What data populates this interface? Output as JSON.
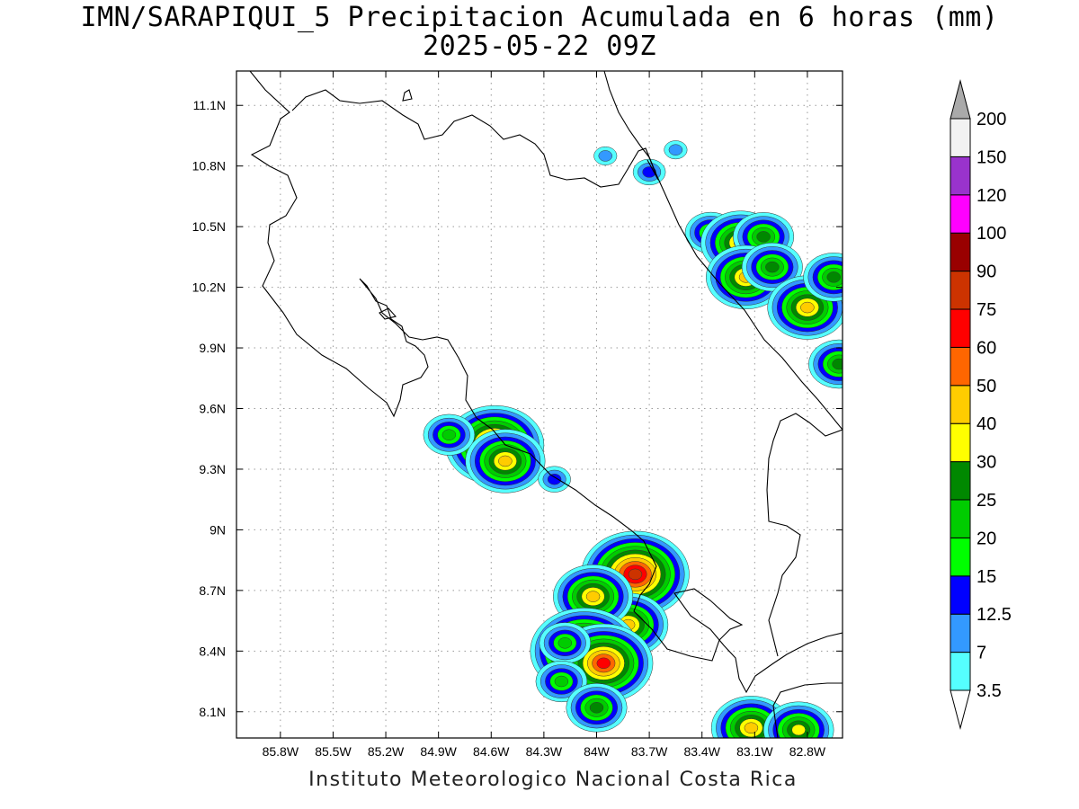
{
  "title_line1": "IMN/SARAPIQUI_5 Precipitacion Acumulada en 6 horas (mm)",
  "title_line2": "2025-05-22 09Z",
  "footer": "Instituto Meteorologico Nacional Costa Rica",
  "map": {
    "lon_range": [
      -86.05,
      -82.6
    ],
    "lat_range": [
      7.97,
      11.27
    ],
    "lon_ticks": [
      {
        "value": -85.8,
        "label": "85.8W"
      },
      {
        "value": -85.5,
        "label": "85.5W"
      },
      {
        "value": -85.2,
        "label": "85.2W"
      },
      {
        "value": -84.9,
        "label": "84.9W"
      },
      {
        "value": -84.6,
        "label": "84.6W"
      },
      {
        "value": -84.3,
        "label": "84.3W"
      },
      {
        "value": -84.0,
        "label": "84W"
      },
      {
        "value": -83.7,
        "label": "83.7W"
      },
      {
        "value": -83.4,
        "label": "83.4W"
      },
      {
        "value": -83.1,
        "label": "83.1W"
      },
      {
        "value": -82.8,
        "label": "82.8W"
      }
    ],
    "lat_ticks": [
      {
        "value": 8.1,
        "label": "8.1N"
      },
      {
        "value": 8.4,
        "label": "8.4N"
      },
      {
        "value": 8.7,
        "label": "8.7N"
      },
      {
        "value": 9.0,
        "label": "9N"
      },
      {
        "value": 9.3,
        "label": "9.3N"
      },
      {
        "value": 9.6,
        "label": "9.6N"
      },
      {
        "value": 9.9,
        "label": "9.9N"
      },
      {
        "value": 10.2,
        "label": "10.2N"
      },
      {
        "value": 10.5,
        "label": "10.5N"
      },
      {
        "value": 10.8,
        "label": "10.8N"
      },
      {
        "value": 11.1,
        "label": "11.1N"
      }
    ],
    "grid": true
  },
  "colorbar": {
    "levels": [
      "3.5",
      "7",
      "12.5",
      "15",
      "20",
      "25",
      "30",
      "40",
      "50",
      "60",
      "75",
      "90",
      "100",
      "120",
      "150",
      "200"
    ],
    "colors": [
      "#55ffff",
      "#3399ff",
      "#0000ff",
      "#00ff00",
      "#00cc00",
      "#008800",
      "#ffff00",
      "#ffcc00",
      "#ff6600",
      "#ff0000",
      "#cc3300",
      "#990000",
      "#ff00ff",
      "#9933cc",
      "#f2f2f2"
    ],
    "under_color": "#ffffff",
    "over_color": "#aaaaaa"
  },
  "precip_cells": [
    {
      "lon": -83.35,
      "lat": 10.47,
      "level": 4
    },
    {
      "lon": -83.18,
      "lat": 10.42,
      "level": 7
    },
    {
      "lon": -83.05,
      "lat": 10.45,
      "level": 5
    },
    {
      "lon": -83.15,
      "lat": 10.25,
      "level": 7
    },
    {
      "lon": -83.0,
      "lat": 10.3,
      "level": 5
    },
    {
      "lon": -82.8,
      "lat": 10.1,
      "level": 7
    },
    {
      "lon": -82.65,
      "lat": 10.25,
      "level": 5
    },
    {
      "lon": -82.62,
      "lat": 9.82,
      "level": 5
    },
    {
      "lon": -83.7,
      "lat": 10.77,
      "level": 2
    },
    {
      "lon": -83.55,
      "lat": 10.88,
      "level": 1
    },
    {
      "lon": -83.95,
      "lat": 10.85,
      "level": 1
    },
    {
      "lon": -84.58,
      "lat": 9.42,
      "level": 9
    },
    {
      "lon": -84.52,
      "lat": 9.34,
      "level": 7
    },
    {
      "lon": -84.84,
      "lat": 9.47,
      "level": 4
    },
    {
      "lon": -84.24,
      "lat": 9.25,
      "level": 2
    },
    {
      "lon": -83.78,
      "lat": 8.78,
      "level": 10
    },
    {
      "lon": -83.82,
      "lat": 8.53,
      "level": 7
    },
    {
      "lon": -84.02,
      "lat": 8.67,
      "level": 7
    },
    {
      "lon": -84.07,
      "lat": 8.4,
      "level": 10
    },
    {
      "lon": -83.96,
      "lat": 8.34,
      "level": 9
    },
    {
      "lon": -84.18,
      "lat": 8.44,
      "level": 4
    },
    {
      "lon": -84.2,
      "lat": 8.25,
      "level": 4
    },
    {
      "lon": -84.0,
      "lat": 8.12,
      "level": 5
    },
    {
      "lon": -83.12,
      "lat": 8.02,
      "level": 7
    },
    {
      "lon": -82.85,
      "lat": 8.01,
      "level": 6
    }
  ]
}
